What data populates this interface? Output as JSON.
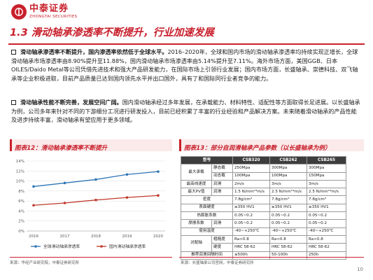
{
  "header": {
    "logo_cn": "中泰证券",
    "logo_en": "ZHONGTAI SECURITIES"
  },
  "section_title": "1.3 滑动轴承渗透率不断提升，行业加速发展",
  "bullets": [
    {
      "lead": "滑动轴承渗透率不断提升，国内渗透率依然低于全球水平。",
      "text": "2016–2020年，全球和国内市场的滑动轴承渗透率均持续实现正增长，全球滑动轴承市场渗透率由8.90%提升至11.88%，国内滑动轴承市场渗透率由5.14%提升至7.11%。海外市场方面，美国GGB、日本OILES/Daido Metal等公司凭借先进技术和强大产品研发能力，在国际市场上引领行业发展；国内市场方面，长盛轴承、崇德科技、双飞轴承等企业积极进取，目前产品质量已达到国内领先水平并出口国外，具有了和国际同行业者竞争的能力。"
    },
    {
      "lead": "滑动轴承性能不断完善，发展空间广阔。",
      "text": "国内滑动轴承经过多年发展，在承载能力、材料特性、适配性等方面取得长足进展。以长盛轴承为例，公司多年来针对不同的下游细分工况进行研发投入，目前已经积累了丰富的行业经验和产品解决方案。未来随着滑动轴承的产品性能及进步持续丰富，滑动轴承有望应用于更多领域。"
    }
  ],
  "figure12": {
    "title": "图表12：滑动轴承渗透率不断提升",
    "source": "来源：华经产业研究院，中泰证券研究所"
  },
  "figure13": {
    "title": "图表13：部分自润滑轴承产品参数（以长盛轴承为例）",
    "source": "来源：长盛轴承公司官网，中泰证券研究所",
    "headers": [
      "型号",
      "CSB320",
      "CSB262",
      "CSB265"
    ],
    "rows": [
      {
        "cat": "最大承载",
        "param": "静态载",
        "vals": [
          "250Mpa",
          "300Mpa",
          "300Mpa"
        ]
      },
      {
        "cat": "",
        "param": "动态载",
        "vals": [
          "100Mpa",
          "100Mpa",
          "150Mpa"
        ]
      },
      {
        "cat": "最高线速度",
        "param": "润滑",
        "vals": [
          "2m/s",
          "3m/s",
          "3m/s"
        ]
      },
      {
        "cat": "最大PV值",
        "param": "润滑",
        "vals": [
          "1.5 N/mm²*m/s",
          "2.5 N/mm²*m/s",
          "2.5 N/mm²*m/s"
        ]
      },
      {
        "cat": "密度",
        "param": "",
        "vals": [
          "7.8g/cm³",
          "7.8g/cm³",
          "7.8g/cm³"
        ]
      },
      {
        "cat": "表面硬度",
        "param": "",
        "vals": [
          "≥350 HV1",
          "≥350 HV1",
          "≥350 HV1"
        ]
      },
      {
        "cat": "热膨胀系数",
        "param": "",
        "vals": [
          "0.05~0.2",
          "0.05~0.2",
          "0.05~0.2"
        ]
      },
      {
        "cat": "摩擦系数",
        "param": "润滑",
        "vals": [
          "0.05~0.2",
          "0.05~0.2",
          "0.05~0.2"
        ]
      },
      {
        "cat": "使用温度",
        "param": "",
        "vals": [
          "-40~+250℃",
          "-40~+250℃",
          "-40~+250℃"
        ]
      },
      {
        "cat": "对配轴",
        "param": "粗糙度",
        "vals": [
          "Ra<0.8",
          "Ra<0.8",
          "Ra<0.8"
        ]
      },
      {
        "cat": "",
        "param": "硬度",
        "vals": [
          "HRC 58-62",
          "HRC 58-62",
          "HRC 58-62"
        ]
      },
      {
        "cat": "推荐润滑间隔时间",
        "param": "",
        "vals": [
          "≤500h",
          "50-100h",
          "250h"
        ]
      }
    ]
  },
  "page_number": "10",
  "colors": {
    "brand_red": "#c8202c",
    "series_global": "#2e74b5",
    "series_domestic": "#c0392b"
  },
  "chart_data": {
    "type": "line",
    "x": [
      "2016",
      "2017",
      "2018",
      "2019",
      "2020"
    ],
    "yticks": [
      "0%",
      "2%",
      "4%",
      "6%",
      "8%",
      "10%",
      "12%",
      "14%"
    ],
    "ylim": [
      0,
      14
    ],
    "series": [
      {
        "name": "全球滑动轴承渗透率",
        "color": "#2e74b5",
        "values": [
          8.9,
          9.6,
          10.3,
          11.3,
          11.88
        ]
      },
      {
        "name": "国内滑动轴承渗透率",
        "color": "#c0392b",
        "values": [
          5.14,
          5.6,
          6.2,
          6.7,
          7.11
        ]
      }
    ],
    "legend_position": "bottom",
    "grid": true
  }
}
